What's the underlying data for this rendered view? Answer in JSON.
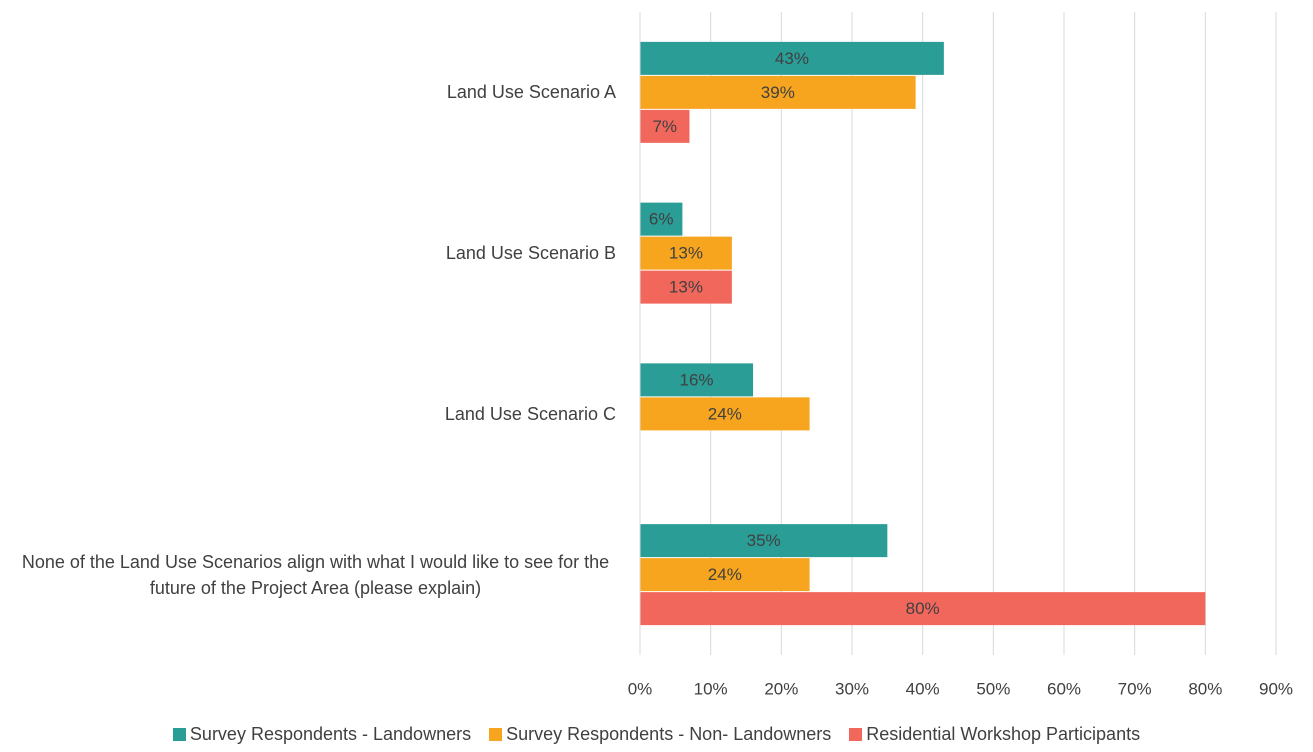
{
  "chart_data": {
    "type": "barh",
    "categories": [
      "Land Use Scenario A",
      "Land Use Scenario B",
      "Land Use Scenario C",
      "None of the Land Use Scenarios align with what I would like to see for the future of the Project Area (please explain)"
    ],
    "series": [
      {
        "name": "Survey Respondents - Landowners",
        "color": "#2a9d97",
        "values": [
          43,
          6,
          16,
          35
        ],
        "value_labels": [
          "43%",
          "6%",
          "16%",
          "35%"
        ]
      },
      {
        "name": "Survey Respondents - Non- Landowners",
        "color": "#f7a51e",
        "values": [
          39,
          13,
          24,
          24
        ],
        "value_labels": [
          "39%",
          "13%",
          "24%",
          "24%"
        ]
      },
      {
        "name": "Residential Workshop Participants",
        "color": "#f1675c",
        "values": [
          7,
          13,
          null,
          80
        ],
        "value_labels": [
          "7%",
          "13%",
          null,
          "80%"
        ]
      }
    ],
    "xlim": [
      0,
      90
    ],
    "xticks": [
      {
        "value": 0,
        "label": "0%"
      },
      {
        "value": 10,
        "label": "10%"
      },
      {
        "value": 20,
        "label": "20%"
      },
      {
        "value": 30,
        "label": "30%"
      },
      {
        "value": 40,
        "label": "40%"
      },
      {
        "value": 50,
        "label": "50%"
      },
      {
        "value": 60,
        "label": "60%"
      },
      {
        "value": 70,
        "label": "70%"
      },
      {
        "value": 80,
        "label": "80%"
      },
      {
        "value": 90,
        "label": "90%"
      }
    ],
    "grid": true,
    "legend": "bottom"
  }
}
